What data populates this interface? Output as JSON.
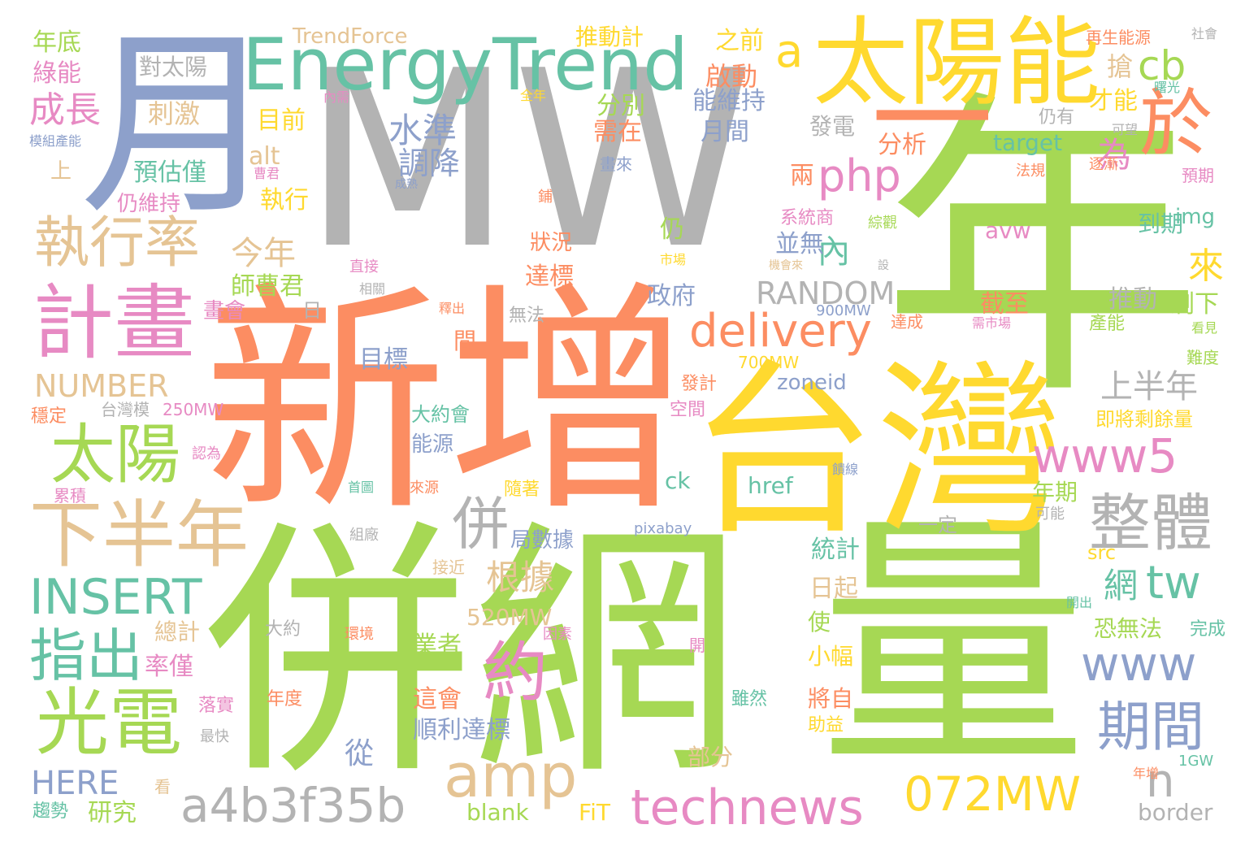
{
  "palette": {
    "green": "#a6d854",
    "orange": "#fc8d62",
    "yellow": "#ffd92f",
    "gray": "#b3b3b3",
    "teal": "#66c2a5",
    "blue": "#8da0cb",
    "pink": "#e78ac3",
    "tan": "#e5c494"
  },
  "words": [
    {
      "text": "MW",
      "color": "gray"
    },
    {
      "text": "新增",
      "color": "orange"
    },
    {
      "text": "年",
      "color": "green"
    },
    {
      "text": "併網",
      "color": "green"
    },
    {
      "text": "量",
      "color": "green"
    },
    {
      "text": "台灣",
      "color": "yellow"
    },
    {
      "text": "月",
      "color": "blue"
    },
    {
      "text": "太陽能",
      "color": "yellow"
    },
    {
      "text": "EnergyTrend",
      "color": "teal"
    },
    {
      "text": "一",
      "color": "orange"
    },
    {
      "text": "於",
      "color": "orange"
    },
    {
      "text": "計畫",
      "color": "pink"
    },
    {
      "text": "執行率",
      "color": "tan"
    },
    {
      "text": "太陽",
      "color": "green"
    },
    {
      "text": "下半年",
      "color": "tan"
    },
    {
      "text": "INSERT",
      "color": "teal"
    },
    {
      "text": "指出",
      "color": "teal"
    },
    {
      "text": "光電",
      "color": "green"
    },
    {
      "text": "delivery",
      "color": "orange"
    },
    {
      "text": "php",
      "color": "pink"
    },
    {
      "text": "cb",
      "color": "green"
    },
    {
      "text": "a",
      "color": "yellow"
    },
    {
      "text": "www5",
      "color": "pink"
    },
    {
      "text": "整體",
      "color": "gray"
    },
    {
      "text": "www",
      "color": "blue"
    },
    {
      "text": "期間",
      "color": "blue"
    },
    {
      "text": "072MW",
      "color": "yellow"
    },
    {
      "text": "technews",
      "color": "pink"
    },
    {
      "text": "a4b3f35b",
      "color": "gray"
    },
    {
      "text": "amp",
      "color": "tan"
    },
    {
      "text": "約",
      "color": "pink"
    },
    {
      "text": "tw",
      "color": "teal"
    },
    {
      "text": "併",
      "color": "gray"
    },
    {
      "text": "n",
      "color": "gray"
    },
    {
      "text": "RANDOM",
      "color": "gray"
    },
    {
      "text": "NUMBER",
      "color": "tan"
    },
    {
      "text": "HERE",
      "color": "blue"
    },
    {
      "text": "成長",
      "color": "pink"
    },
    {
      "text": "水準",
      "color": "blue"
    },
    {
      "text": "調降",
      "color": "blue"
    },
    {
      "text": "來",
      "color": "yellow"
    },
    {
      "text": "為",
      "color": "pink"
    },
    {
      "text": "內",
      "color": "teal"
    },
    {
      "text": "今年",
      "color": "tan"
    },
    {
      "text": "師曹君",
      "color": "green"
    },
    {
      "text": "上半年",
      "color": "gray"
    },
    {
      "text": "根據",
      "color": "tan"
    },
    {
      "text": "網",
      "color": "teal"
    },
    {
      "text": "TrendForce",
      "color": "tan"
    },
    {
      "text": "推動計",
      "color": "yellow"
    },
    {
      "text": "之前",
      "color": "yellow"
    },
    {
      "text": "再生能源",
      "color": "orange"
    },
    {
      "text": "社會",
      "color": "gray"
    },
    {
      "text": "年底",
      "color": "green"
    },
    {
      "text": "綠能",
      "color": "pink"
    },
    {
      "text": "對太陽",
      "color": "gray"
    },
    {
      "text": "刺激",
      "color": "tan"
    },
    {
      "text": "啟動",
      "color": "orange"
    },
    {
      "text": "搶",
      "color": "tan"
    },
    {
      "text": "能維持",
      "color": "blue"
    },
    {
      "text": "才能",
      "color": "yellow"
    },
    {
      "text": "分別",
      "color": "green"
    },
    {
      "text": "目前",
      "color": "yellow"
    },
    {
      "text": "需在",
      "color": "orange"
    },
    {
      "text": "月間",
      "color": "blue"
    },
    {
      "text": "發電",
      "color": "gray"
    },
    {
      "text": "仍有",
      "color": "gray"
    },
    {
      "text": "模組產能",
      "color": "blue"
    },
    {
      "text": "分析",
      "color": "orange"
    },
    {
      "text": "target",
      "color": "teal"
    },
    {
      "text": "預估僅",
      "color": "teal"
    },
    {
      "text": "alt",
      "color": "tan"
    },
    {
      "text": "上",
      "color": "tan"
    },
    {
      "text": "仍維持",
      "color": "pink"
    },
    {
      "text": "執行",
      "color": "yellow"
    },
    {
      "text": "兩",
      "color": "orange"
    },
    {
      "text": "系統商",
      "color": "pink"
    },
    {
      "text": "img",
      "color": "teal"
    },
    {
      "text": "到期",
      "color": "teal"
    },
    {
      "text": "仍",
      "color": "green"
    },
    {
      "text": "狀況",
      "color": "orange"
    },
    {
      "text": "並無",
      "color": "blue"
    },
    {
      "text": "avw",
      "color": "pink"
    },
    {
      "text": "推動",
      "color": "gray"
    },
    {
      "text": "剩下",
      "color": "green"
    },
    {
      "text": "政府",
      "color": "blue"
    },
    {
      "text": "達標",
      "color": "orange"
    },
    {
      "text": "截至",
      "color": "orange"
    },
    {
      "text": "畫會",
      "color": "pink"
    },
    {
      "text": "日",
      "color": "gray"
    },
    {
      "text": "無法",
      "color": "gray"
    },
    {
      "text": "目標",
      "color": "blue"
    },
    {
      "text": "間",
      "color": "orange"
    },
    {
      "text": "700MW",
      "color": "yellow"
    },
    {
      "text": "zoneid",
      "color": "blue"
    },
    {
      "text": "900MW",
      "color": "blue"
    },
    {
      "text": "達成",
      "color": "orange"
    },
    {
      "text": "產能",
      "color": "green"
    },
    {
      "text": "難度",
      "color": "green"
    },
    {
      "text": "250MW",
      "color": "pink"
    },
    {
      "text": "台灣模",
      "color": "gray"
    },
    {
      "text": "穩定",
      "color": "orange"
    },
    {
      "text": "大約會",
      "color": "teal"
    },
    {
      "text": "能源",
      "color": "blue"
    },
    {
      "text": "即將剩餘量",
      "color": "yellow"
    },
    {
      "text": "發計",
      "color": "orange"
    },
    {
      "text": "空間",
      "color": "pink"
    },
    {
      "text": "累積",
      "color": "pink"
    },
    {
      "text": "ck",
      "color": "teal"
    },
    {
      "text": "href",
      "color": "teal"
    },
    {
      "text": "年期",
      "color": "green"
    },
    {
      "text": "一定",
      "color": "gray"
    },
    {
      "text": "局數據",
      "color": "blue"
    },
    {
      "text": "統計",
      "color": "teal"
    },
    {
      "text": "src",
      "color": "yellow"
    },
    {
      "text": "pixabay",
      "color": "blue"
    },
    {
      "text": "520MW",
      "color": "tan"
    },
    {
      "text": "總計",
      "color": "tan"
    },
    {
      "text": "業者",
      "color": "green"
    },
    {
      "text": "恐無法",
      "color": "green"
    },
    {
      "text": "完成",
      "color": "teal"
    },
    {
      "text": "率僅",
      "color": "pink"
    },
    {
      "text": "大約",
      "color": "gray"
    },
    {
      "text": "環境",
      "color": "orange"
    },
    {
      "text": "因素",
      "color": "pink"
    },
    {
      "text": "使",
      "color": "green"
    },
    {
      "text": "小幅",
      "color": "yellow"
    },
    {
      "text": "日起",
      "color": "tan"
    },
    {
      "text": "這會",
      "color": "orange"
    },
    {
      "text": "將自",
      "color": "orange"
    },
    {
      "text": "雖然",
      "color": "teal"
    },
    {
      "text": "順利達標",
      "color": "blue"
    },
    {
      "text": "從",
      "color": "blue"
    },
    {
      "text": "部分",
      "color": "tan"
    },
    {
      "text": "落實",
      "color": "pink"
    },
    {
      "text": "年度",
      "color": "orange"
    },
    {
      "text": "助益",
      "color": "yellow"
    },
    {
      "text": "最快",
      "color": "gray"
    },
    {
      "text": "看",
      "color": "tan"
    },
    {
      "text": "趨勢",
      "color": "teal"
    },
    {
      "text": "研究",
      "color": "green"
    },
    {
      "text": "blank",
      "color": "green"
    },
    {
      "text": "FiT",
      "color": "yellow"
    },
    {
      "text": "border",
      "color": "gray"
    },
    {
      "text": "年增",
      "color": "orange"
    },
    {
      "text": "1GW",
      "color": "teal"
    },
    {
      "text": "全年",
      "color": "yellow"
    },
    {
      "text": "內需",
      "color": "pink"
    },
    {
      "text": "曙光",
      "color": "teal"
    },
    {
      "text": "可望",
      "color": "gray"
    },
    {
      "text": "法規",
      "color": "orange"
    },
    {
      "text": "逐漸",
      "color": "orange"
    },
    {
      "text": "預期",
      "color": "pink"
    },
    {
      "text": "畫來",
      "color": "blue"
    },
    {
      "text": "曹君",
      "color": "pink"
    },
    {
      "text": "成熟",
      "color": "blue"
    },
    {
      "text": "鋪",
      "color": "orange"
    },
    {
      "text": "市場",
      "color": "yellow"
    },
    {
      "text": "機會來",
      "color": "tan"
    },
    {
      "text": "綜觀",
      "color": "green"
    },
    {
      "text": "設",
      "color": "gray"
    },
    {
      "text": "直接",
      "color": "pink"
    },
    {
      "text": "相關",
      "color": "gray"
    },
    {
      "text": "釋出",
      "color": "orange"
    },
    {
      "text": "需市場",
      "color": "pink"
    },
    {
      "text": "看見",
      "color": "green"
    },
    {
      "text": "認為",
      "color": "pink"
    },
    {
      "text": "首圖",
      "color": "teal"
    },
    {
      "text": "來源",
      "color": "orange"
    },
    {
      "text": "隨著",
      "color": "yellow"
    },
    {
      "text": "饋線",
      "color": "blue"
    },
    {
      "text": "可能",
      "color": "gray"
    },
    {
      "text": "組廠",
      "color": "gray"
    },
    {
      "text": "接近",
      "color": "tan"
    },
    {
      "text": "開出",
      "color": "teal"
    },
    {
      "text": "開",
      "color": "pink"
    }
  ]
}
